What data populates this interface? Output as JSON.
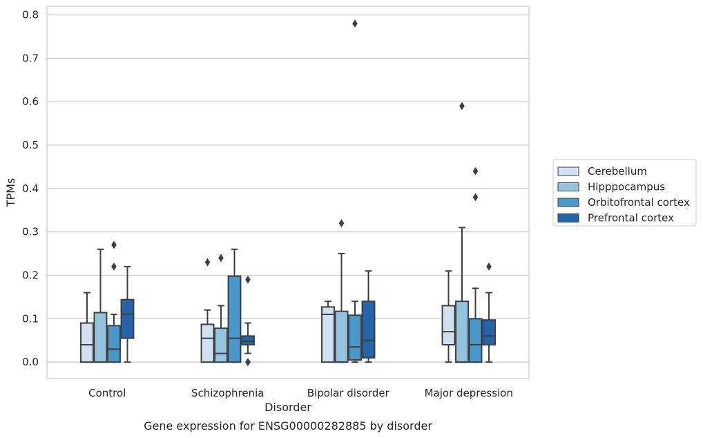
{
  "chart_data": {
    "type": "box",
    "title": "Gene expression for ENSG00000282885 by disorder",
    "xlabel": "Disorder",
    "ylabel": "TPMs",
    "ylim": [
      -0.038,
      0.82
    ],
    "yticks": [
      "0.0",
      "0.1",
      "0.2",
      "0.3",
      "0.4",
      "0.5",
      "0.6",
      "0.7",
      "0.8"
    ],
    "grid": true,
    "legend_position": "right",
    "categories": [
      "Control",
      "Schizophrenia",
      "Bipolar disorder",
      "Major depression"
    ],
    "series": [
      {
        "name": "Cerebellum",
        "color": "#d0e1f2",
        "boxes": [
          {
            "min": 0.0,
            "q1": 0.0,
            "median": 0.04,
            "q3": 0.09,
            "max": 0.16,
            "outliers": []
          },
          {
            "min": 0.0,
            "q1": 0.0,
            "median": 0.055,
            "q3": 0.087,
            "max": 0.12,
            "outliers": [
              0.23
            ]
          },
          {
            "min": 0.0,
            "q1": 0.0,
            "median": 0.11,
            "q3": 0.127,
            "max": 0.14,
            "outliers": []
          },
          {
            "min": 0.0,
            "q1": 0.04,
            "median": 0.07,
            "q3": 0.13,
            "max": 0.21,
            "outliers": []
          }
        ]
      },
      {
        "name": "Hipppocampus",
        "color": "#94c4df",
        "boxes": [
          {
            "min": 0.0,
            "q1": 0.0,
            "median": 0.0,
            "q3": 0.114,
            "max": 0.26,
            "outliers": []
          },
          {
            "min": 0.0,
            "q1": 0.0,
            "median": 0.02,
            "q3": 0.078,
            "max": 0.13,
            "outliers": [
              0.24
            ]
          },
          {
            "min": 0.0,
            "q1": 0.0,
            "median": 0.0,
            "q3": 0.117,
            "max": 0.25,
            "outliers": [
              0.32
            ]
          },
          {
            "min": 0.0,
            "q1": 0.0,
            "median": 0.0,
            "q3": 0.14,
            "max": 0.31,
            "outliers": [
              0.59
            ]
          }
        ]
      },
      {
        "name": "Orbitofrontal cortex",
        "color": "#4a98c9",
        "boxes": [
          {
            "min": 0.0,
            "q1": 0.0,
            "median": 0.03,
            "q3": 0.084,
            "max": 0.11,
            "outliers": [
              0.27,
              0.22
            ]
          },
          {
            "min": 0.0,
            "q1": 0.0,
            "median": 0.055,
            "q3": 0.198,
            "max": 0.26,
            "outliers": []
          },
          {
            "min": 0.0,
            "q1": 0.005,
            "median": 0.035,
            "q3": 0.108,
            "max": 0.14,
            "outliers": [
              0.78
            ]
          },
          {
            "min": 0.0,
            "q1": 0.0,
            "median": 0.04,
            "q3": 0.1,
            "max": 0.17,
            "outliers": [
              0.44,
              0.38
            ]
          }
        ]
      },
      {
        "name": "Prefrontal cortex",
        "color": "#2364aa",
        "boxes": [
          {
            "min": 0.0,
            "q1": 0.055,
            "median": 0.11,
            "q3": 0.144,
            "max": 0.22,
            "outliers": []
          },
          {
            "min": 0.02,
            "q1": 0.04,
            "median": 0.048,
            "q3": 0.06,
            "max": 0.09,
            "outliers": [
              0.19,
              0.0,
              0.0
            ]
          },
          {
            "min": 0.0,
            "q1": 0.01,
            "median": 0.05,
            "q3": 0.14,
            "max": 0.21,
            "outliers": []
          },
          {
            "min": 0.0,
            "q1": 0.04,
            "median": 0.06,
            "q3": 0.097,
            "max": 0.16,
            "outliers": [
              0.22
            ]
          }
        ]
      }
    ]
  }
}
